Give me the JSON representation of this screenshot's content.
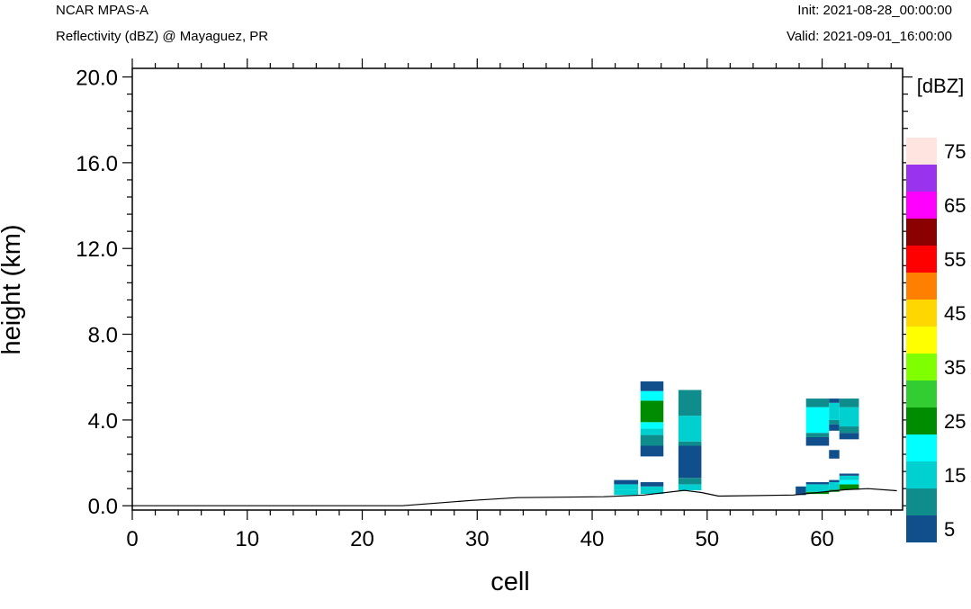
{
  "header": {
    "model": "NCAR MPAS-A",
    "field": "Reflectivity (dBZ) @ Mayaguez, PR",
    "init": "Init: 2021-08-28_00:00:00",
    "valid": "Valid: 2021-09-01_16:00:00"
  },
  "chart_data": {
    "type": "heatmap",
    "xlabel": "cell",
    "ylabel": "height (km)",
    "xlim": [
      0,
      67
    ],
    "ylim": [
      -0.2,
      20.4
    ],
    "x_ticks": [
      0,
      10,
      20,
      30,
      40,
      50,
      60
    ],
    "x_tick_labels": [
      "0",
      "10",
      "20",
      "30",
      "40",
      "50",
      "60"
    ],
    "y_ticks": [
      0,
      4,
      8,
      12,
      16,
      20
    ],
    "y_tick_labels": [
      "0.0",
      "4.0",
      "8.0",
      "12.0",
      "16.0",
      "20.0"
    ],
    "colorbar": {
      "title": "[dBZ]",
      "levels": [
        5,
        10,
        15,
        20,
        25,
        30,
        35,
        40,
        45,
        50,
        55,
        60,
        65,
        70,
        75
      ],
      "labels": [
        "5",
        "15",
        "25",
        "35",
        "45",
        "55",
        "65",
        "75"
      ],
      "colors": [
        "#114f8c",
        "#0f8c8c",
        "#00d0d0",
        "#00ffff",
        "#008c00",
        "#33cc33",
        "#7fff00",
        "#ffff00",
        "#ffd700",
        "#ff8000",
        "#ff0000",
        "#8b0000",
        "#ff00ff",
        "#9933ee",
        "#ffe4e0"
      ]
    },
    "terrain": [
      [
        0,
        0
      ],
      [
        23.5,
        0
      ],
      [
        29.5,
        0.25
      ],
      [
        33.5,
        0.38
      ],
      [
        41,
        0.42
      ],
      [
        44.5,
        0.5
      ],
      [
        48,
        0.72
      ],
      [
        49.5,
        0.62
      ],
      [
        51,
        0.45
      ],
      [
        57.5,
        0.5
      ],
      [
        62,
        0.75
      ],
      [
        64,
        0.8
      ],
      [
        66.5,
        0.7
      ]
    ],
    "cells": [
      {
        "x": [
          41.9,
          44
        ],
        "layers": [
          [
            0.5,
            0.75,
            15
          ],
          [
            0.75,
            1.0,
            15
          ],
          [
            1.0,
            1.2,
            5
          ]
        ]
      },
      {
        "x": [
          44.2,
          46.2
        ],
        "layers": [
          [
            0.55,
            0.7,
            15
          ],
          [
            0.7,
            0.9,
            15
          ],
          [
            0.9,
            1.1,
            5
          ],
          [
            2.3,
            2.8,
            5
          ],
          [
            2.8,
            3.3,
            10
          ],
          [
            3.3,
            3.6,
            15
          ],
          [
            3.6,
            3.9,
            20
          ],
          [
            3.9,
            4.9,
            25
          ],
          [
            4.9,
            5.35,
            20
          ],
          [
            5.35,
            5.8,
            5
          ]
        ]
      },
      {
        "x": [
          47.5,
          49.5
        ],
        "layers": [
          [
            0.72,
            1.0,
            15
          ],
          [
            1.0,
            1.3,
            10
          ],
          [
            1.3,
            2.8,
            5
          ],
          [
            2.8,
            3.0,
            10
          ],
          [
            3.0,
            4.2,
            15
          ],
          [
            4.2,
            5.4,
            10
          ]
        ]
      },
      {
        "x": [
          57.7,
          58.6
        ],
        "layers": [
          [
            0.5,
            0.9,
            5
          ]
        ]
      },
      {
        "x": [
          58.6,
          60.6
        ],
        "layers": [
          [
            0.55,
            0.65,
            25
          ],
          [
            0.65,
            1.0,
            15
          ],
          [
            1.0,
            1.1,
            5
          ],
          [
            2.8,
            3.2,
            5
          ],
          [
            3.2,
            3.4,
            10
          ],
          [
            3.4,
            4.6,
            20
          ],
          [
            4.6,
            5.0,
            10
          ]
        ]
      },
      {
        "x": [
          60.6,
          61.5
        ],
        "layers": [
          [
            0.65,
            0.75,
            25
          ],
          [
            0.75,
            1.1,
            15
          ],
          [
            1.1,
            1.2,
            5
          ],
          [
            2.2,
            2.6,
            5
          ],
          [
            3.5,
            3.8,
            5
          ],
          [
            3.8,
            4.0,
            10
          ],
          [
            4.0,
            4.8,
            15
          ],
          [
            4.8,
            5.0,
            5
          ]
        ]
      },
      {
        "x": [
          61.5,
          63.2
        ],
        "layers": [
          [
            0.75,
            1.0,
            25
          ],
          [
            1.0,
            1.2,
            20
          ],
          [
            1.2,
            1.4,
            15
          ],
          [
            1.4,
            1.5,
            5
          ],
          [
            3.1,
            3.4,
            5
          ],
          [
            3.4,
            3.7,
            10
          ],
          [
            3.7,
            4.6,
            15
          ],
          [
            4.6,
            5.0,
            10
          ]
        ]
      }
    ]
  }
}
